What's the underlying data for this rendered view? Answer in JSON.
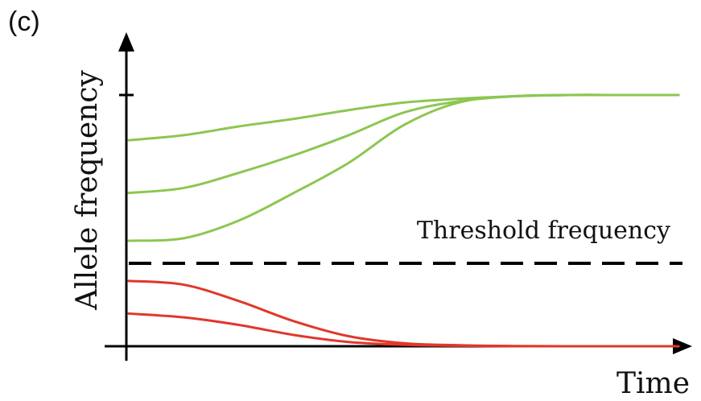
{
  "panel_label": "(c)",
  "chart_data": {
    "type": "line",
    "title": "",
    "xlabel": "Time",
    "ylabel": "Allele frequency",
    "xlim": [
      0,
      1
    ],
    "ylim": [
      0,
      1
    ],
    "grid": false,
    "legend": "none",
    "y_ticks": [
      1
    ],
    "threshold": {
      "label": "Threshold frequency",
      "value": 0.33,
      "style": "dashed",
      "color": "#000000"
    },
    "series": [
      {
        "color": "#8dc651",
        "x": [
          0,
          0.1,
          0.2,
          0.3,
          0.4,
          0.5,
          0.6,
          0.7,
          0.8,
          0.9,
          1.0
        ],
        "y": [
          0.82,
          0.84,
          0.875,
          0.905,
          0.94,
          0.97,
          0.985,
          0.995,
          1.0,
          1.0,
          1.0
        ]
      },
      {
        "color": "#8dc651",
        "x": [
          0,
          0.1,
          0.2,
          0.3,
          0.4,
          0.5,
          0.6,
          0.7,
          0.8,
          0.9,
          1.0
        ],
        "y": [
          0.61,
          0.63,
          0.69,
          0.76,
          0.84,
          0.93,
          0.975,
          0.995,
          1.0,
          1.0,
          1.0
        ]
      },
      {
        "color": "#8dc651",
        "x": [
          0,
          0.1,
          0.2,
          0.3,
          0.4,
          0.5,
          0.6,
          0.7,
          0.8,
          0.9,
          1.0
        ],
        "y": [
          0.42,
          0.43,
          0.5,
          0.61,
          0.73,
          0.88,
          0.97,
          0.995,
          1.0,
          1.0,
          1.0
        ]
      },
      {
        "color": "#e0382b",
        "x": [
          0,
          0.1,
          0.2,
          0.3,
          0.4,
          0.5,
          0.6,
          0.7,
          0.8,
          0.9,
          1.0
        ],
        "y": [
          0.26,
          0.245,
          0.18,
          0.1,
          0.04,
          0.012,
          0.004,
          0.001,
          0.0,
          0.0,
          0.0
        ]
      },
      {
        "color": "#e0382b",
        "x": [
          0,
          0.1,
          0.2,
          0.3,
          0.4,
          0.5,
          0.6,
          0.7,
          0.8,
          0.9,
          1.0
        ],
        "y": [
          0.13,
          0.115,
          0.085,
          0.045,
          0.017,
          0.006,
          0.002,
          0.0,
          0.0,
          0.0,
          0.0
        ]
      }
    ]
  }
}
